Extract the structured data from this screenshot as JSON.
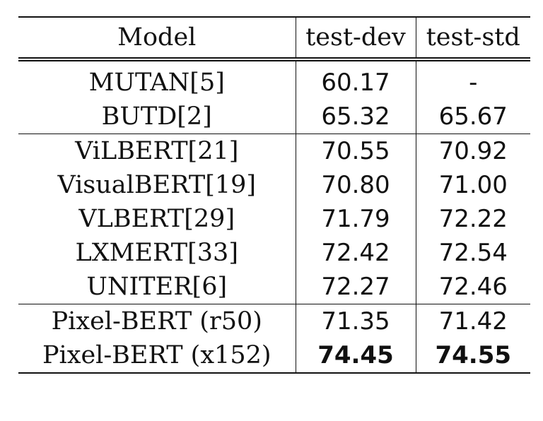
{
  "table": {
    "headers": {
      "model": "Model",
      "test_dev": "test-dev",
      "test_std": "test-std"
    },
    "rows": [
      {
        "model": "MUTAN[5]",
        "test_dev": "60.17",
        "test_std": "-"
      },
      {
        "model": "BUTD[2]",
        "test_dev": "65.32",
        "test_std": "65.67"
      },
      {
        "model": "ViLBERT[21]",
        "test_dev": "70.55",
        "test_std": "70.92"
      },
      {
        "model": "VisualBERT[19]",
        "test_dev": "70.80",
        "test_std": "71.00"
      },
      {
        "model": "VLBERT[29]",
        "test_dev": "71.79",
        "test_std": "72.22"
      },
      {
        "model": "LXMERT[33]",
        "test_dev": "72.42",
        "test_std": "72.54"
      },
      {
        "model": "UNITER[6]",
        "test_dev": "72.27",
        "test_std": "72.46"
      },
      {
        "model": "Pixel-BERT (r50)",
        "test_dev": "71.35",
        "test_std": "71.42"
      },
      {
        "model": "Pixel-BERT (x152)",
        "test_dev": "74.45",
        "test_std": "74.55"
      }
    ]
  }
}
